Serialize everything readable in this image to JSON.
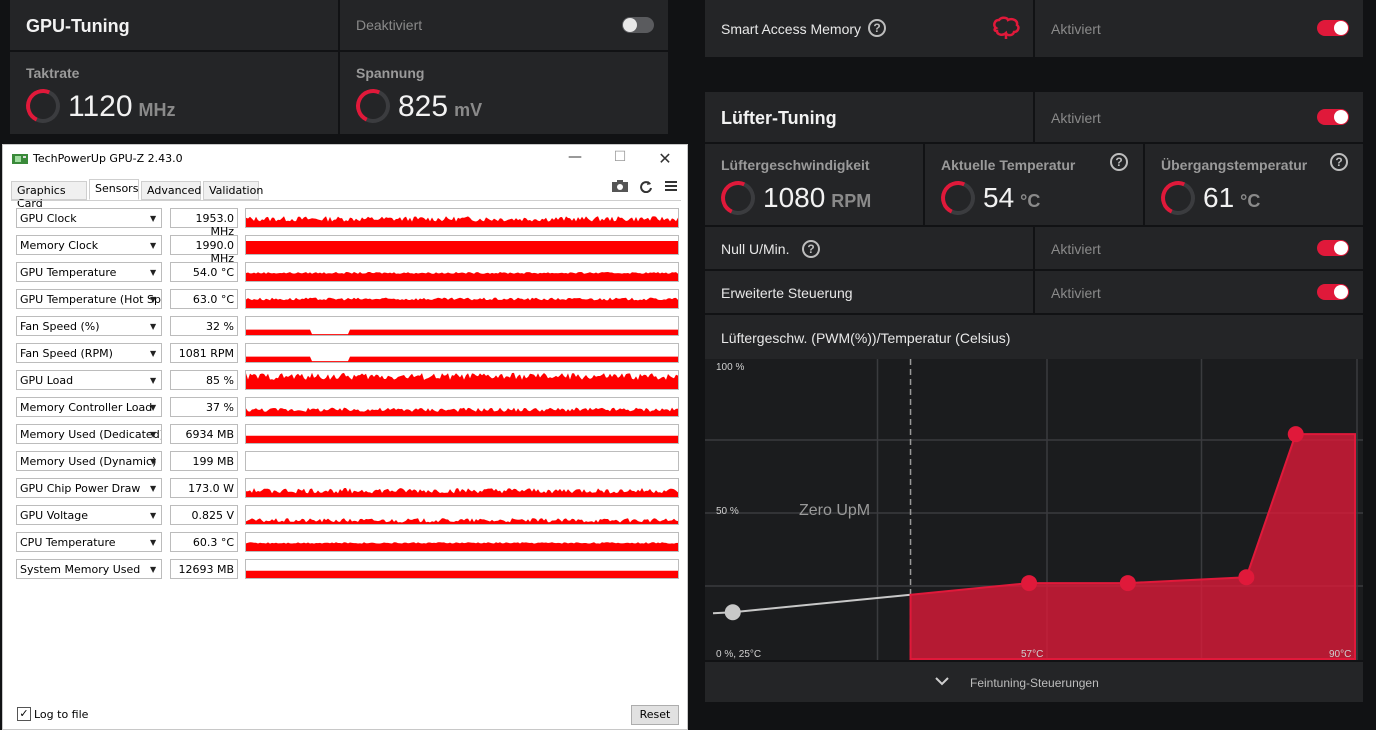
{
  "gpu_tuning": {
    "title": "GPU-Tuning",
    "state": "Deaktiviert",
    "clock": {
      "label": "Taktrate",
      "value": "1120",
      "unit": "MHz"
    },
    "voltage": {
      "label": "Spannung",
      "value": "825",
      "unit": "mV"
    }
  },
  "sam": {
    "label": "Smart Access Memory",
    "state": "Aktiviert"
  },
  "fan_tuning": {
    "title": "Lüfter-Tuning",
    "state": "Aktiviert",
    "speed": {
      "label": "Lüftergeschwindigkeit",
      "value": "1080",
      "unit": "RPM"
    },
    "temp": {
      "label": "Aktuelle Temperatur",
      "value": "54",
      "unit": "°C"
    },
    "junction": {
      "label": "Übergangstemperatur",
      "value": "61",
      "unit": "°C"
    },
    "zero_rpm": {
      "label": "Null U/Min.",
      "state": "Aktiviert"
    },
    "advanced": {
      "label": "Erweiterte Steuerung",
      "state": "Aktiviert"
    },
    "curve_title": "Lüftergeschw. (PWM(%))/Temperatur (Celsius)",
    "fine_tune_label": "Feintuning-Steuerungen"
  },
  "chart_data": {
    "type": "line",
    "title": "",
    "y_tick_labels": [
      "100 %",
      "50 %"
    ],
    "x_tick_labels": [
      "57°C",
      "90°C"
    ],
    "origin_label": "0 %, 25°C",
    "zone_label": "Zero UpM",
    "xlim": [
      25,
      90
    ],
    "ylim": [
      0,
      100
    ],
    "zero_rpm_limit_x": 45,
    "points": [
      {
        "x": 27,
        "y": 16,
        "enabled": false
      },
      {
        "x": 57,
        "y": 26,
        "enabled": true
      },
      {
        "x": 67,
        "y": 26,
        "enabled": true
      },
      {
        "x": 79,
        "y": 28,
        "enabled": true
      },
      {
        "x": 84,
        "y": 77,
        "enabled": true
      }
    ],
    "colors": {
      "active": "#e0193a",
      "inactive": "#c8c8c8"
    }
  },
  "gpuz": {
    "title": "TechPowerUp GPU-Z 2.43.0",
    "tabs": [
      "Graphics Card",
      "Sensors",
      "Advanced",
      "Validation"
    ],
    "active_tab": "Sensors",
    "sensors": [
      {
        "name": "GPU Clock",
        "value": "1953.0 MHz",
        "fill": 0.45,
        "noise": 0.15
      },
      {
        "name": "Memory Clock",
        "value": "1990.0 MHz",
        "fill": 0.72,
        "noise": 0.0
      },
      {
        "name": "GPU Temperature",
        "value": "54.0 °C",
        "fill": 0.45,
        "noise": 0.05
      },
      {
        "name": "GPU Temperature (Hot Spot)",
        "value": "63.0 °C",
        "fill": 0.5,
        "noise": 0.08
      },
      {
        "name": "Fan Speed (%)",
        "value": "32 %",
        "fill": 0.3,
        "noise": 0.0,
        "gap": [
          0.15,
          0.24
        ]
      },
      {
        "name": "Fan Speed (RPM)",
        "value": "1081 RPM",
        "fill": 0.3,
        "noise": 0.0,
        "gap": [
          0.15,
          0.24
        ]
      },
      {
        "name": "GPU Load",
        "value": "85 %",
        "fill": 0.7,
        "noise": 0.2
      },
      {
        "name": "Memory Controller Load",
        "value": "37 %",
        "fill": 0.35,
        "noise": 0.12
      },
      {
        "name": "Memory Used (Dedicated)",
        "value": "6934 MB",
        "fill": 0.4,
        "noise": 0.0
      },
      {
        "name": "Memory Used (Dynamic)",
        "value": "199 MB",
        "fill": 0.0,
        "noise": 0.0
      },
      {
        "name": "GPU Chip Power Draw",
        "value": "173.0 W",
        "fill": 0.35,
        "noise": 0.15
      },
      {
        "name": "GPU Voltage",
        "value": "0.825 V",
        "fill": 0.2,
        "noise": 0.12
      },
      {
        "name": "CPU Temperature",
        "value": "60.3 °C",
        "fill": 0.45,
        "noise": 0.04
      },
      {
        "name": "System Memory Used",
        "value": "12693 MB",
        "fill": 0.4,
        "noise": 0.0
      }
    ],
    "log_label": "Log to file",
    "reset_label": "Reset"
  }
}
